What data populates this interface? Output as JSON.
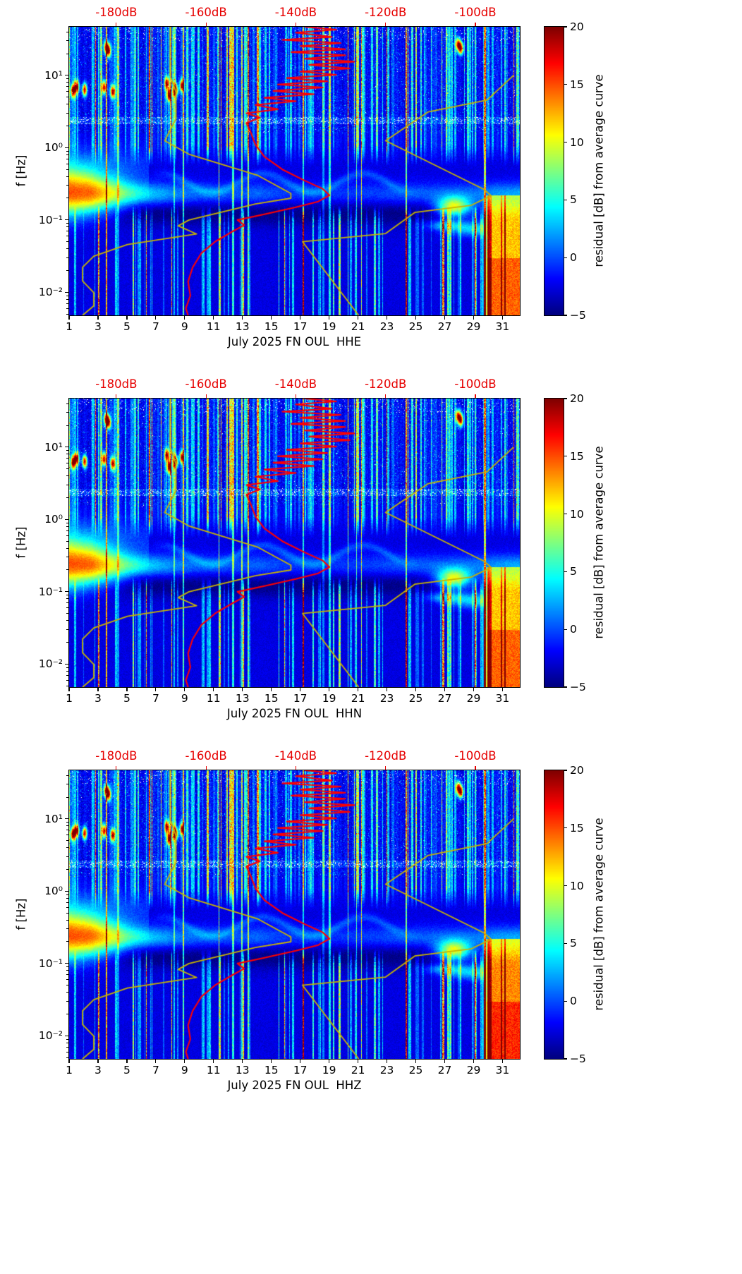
{
  "figure": {
    "background": "#ffffff"
  },
  "shared": {
    "ylabel": "f [Hz]",
    "top_db_labels": [
      "-180dB",
      "-160dB",
      "-140dB",
      "-120dB",
      "-100dB"
    ],
    "top_db_values": [
      -180,
      -160,
      -140,
      -120,
      -100
    ],
    "top_axis_color": "#e60000",
    "x_tick_labels": [
      "1",
      "3",
      "5",
      "7",
      "9",
      "11",
      "13",
      "15",
      "17",
      "19",
      "21",
      "23",
      "25",
      "27",
      "29",
      "31"
    ],
    "x_tick_values": [
      1,
      3,
      5,
      7,
      9,
      11,
      13,
      15,
      17,
      19,
      21,
      23,
      25,
      27,
      29,
      31
    ],
    "y_tick_labels": [
      "10¹",
      "10⁰",
      "10⁻¹",
      "10⁻²"
    ],
    "y_tick_values": [
      10,
      1,
      0.1,
      0.01
    ],
    "colorbar": {
      "label": "residual [dB] from average curve",
      "ticks": [
        "20",
        "15",
        "10",
        "5",
        "0",
        "−5"
      ],
      "tick_values": [
        20,
        15,
        10,
        5,
        0,
        -5
      ],
      "min": -5,
      "max": 20,
      "colormap": "jet"
    }
  },
  "panels": [
    {
      "channel": "HHE",
      "xlabel": "July 2025 FN OUL  HHE"
    },
    {
      "channel": "HHN",
      "xlabel": "July 2025 FN OUL  HHN"
    },
    {
      "channel": "HHZ",
      "xlabel": "July 2025 FN OUL  HHZ"
    }
  ],
  "chart_data": [
    {
      "type": "heatmap",
      "title": "",
      "xlabel": "July 2025 FN OUL  HHE",
      "ylabel": "f [Hz]",
      "x_axis": {
        "quantity": "day of July 2025",
        "range": [
          1,
          32.2
        ],
        "ticks": [
          1,
          3,
          5,
          7,
          9,
          11,
          13,
          15,
          17,
          19,
          21,
          23,
          25,
          27,
          29,
          31
        ]
      },
      "y_axis": {
        "quantity": "frequency [Hz]",
        "scale": "log",
        "range": [
          0.0048,
          47
        ],
        "ticks": [
          0.01,
          0.1,
          1,
          10
        ]
      },
      "top_axis": {
        "quantity": "PSD [dB]",
        "range": [
          -190.5,
          -90.1
        ],
        "ticks": [
          -180,
          -160,
          -140,
          -120,
          -100
        ],
        "tick_labels": [
          "-180dB",
          "-160dB",
          "-140dB",
          "-120dB",
          "-100dB"
        ],
        "color": "#e60000"
      },
      "color_axis": {
        "label": "residual [dB] from average curve",
        "range": [
          -5,
          20
        ],
        "ticks": [
          20,
          15,
          10,
          5,
          0,
          -5
        ],
        "colormap": "jet"
      },
      "overlays": {
        "average_curve": {
          "color": "#ff0000",
          "axis": "top_db",
          "points_db_hz": [
            [
              -138,
              47
            ],
            [
              -131,
              43
            ],
            [
              -140,
              39
            ],
            [
              -132,
              34
            ],
            [
              -143,
              31
            ],
            [
              -130,
              28
            ],
            [
              -139,
              25.5
            ],
            [
              -129,
              23
            ],
            [
              -141,
              21
            ],
            [
              -129,
              19
            ],
            [
              -138,
              17
            ],
            [
              -127,
              15.5
            ],
            [
              -137,
              14
            ],
            [
              -128,
              12.5
            ],
            [
              -139,
              11.3
            ],
            [
              -131,
              10.2
            ],
            [
              -142,
              9.2
            ],
            [
              -133,
              8.3
            ],
            [
              -144,
              7.5
            ],
            [
              -134,
              6.8
            ],
            [
              -145,
              6.1
            ],
            [
              -136,
              5.5
            ],
            [
              -147,
              4.9
            ],
            [
              -140,
              4.4
            ],
            [
              -149,
              3.9
            ],
            [
              -144,
              3.4
            ],
            [
              -151,
              3.0
            ],
            [
              -148,
              2.6
            ],
            [
              -151,
              2.2
            ],
            [
              -150,
              1.6
            ],
            [
              -149,
              1.1
            ],
            [
              -147,
              0.75
            ],
            [
              -143,
              0.5
            ],
            [
              -138,
              0.35
            ],
            [
              -134,
              0.27
            ],
            [
              -132.5,
              0.22
            ],
            [
              -135,
              0.18
            ],
            [
              -140,
              0.15
            ],
            [
              -147,
              0.12
            ],
            [
              -153,
              0.1
            ],
            [
              -151.5,
              0.085
            ],
            [
              -154,
              0.07
            ],
            [
              -158,
              0.05
            ],
            [
              -161,
              0.035
            ],
            [
              -163,
              0.022
            ],
            [
              -164,
              0.014
            ],
            [
              -163.5,
              0.009
            ],
            [
              -164.5,
              0.006
            ],
            [
              -164,
              0.0048
            ]
          ]
        },
        "low_noise_model": {
          "color": "#c8b400",
          "axis": "top_db",
          "points_db_hz": [
            [
              -168,
              47
            ],
            [
              -168,
              10
            ],
            [
              -166.7,
              5.9
            ],
            [
              -166.7,
              2.5
            ],
            [
              -169.2,
              1.25
            ],
            [
              -163.7,
              0.806
            ],
            [
              -148.6,
              0.417
            ],
            [
              -141.1,
              0.233
            ],
            [
              -141.1,
              0.2
            ],
            [
              -149.0,
              0.167
            ],
            [
              -163.8,
              0.1
            ],
            [
              -166.2,
              0.083
            ],
            [
              -162.1,
              0.064
            ],
            [
              -177.5,
              0.0457
            ],
            [
              -185.0,
              0.0316
            ],
            [
              -187.5,
              0.0222
            ],
            [
              -187.5,
              0.0143
            ],
            [
              -185.0,
              0.0099
            ],
            [
              -185.0,
              0.0065
            ],
            [
              -187.5,
              0.0048
            ]
          ]
        },
        "high_noise_model": {
          "color": "#c8b400",
          "axis": "top_db",
          "points_db_hz": [
            [
              -91.5,
              10
            ],
            [
              -97.4,
              4.55
            ],
            [
              -110.5,
              3.13
            ],
            [
              -120.0,
              1.25
            ],
            [
              -98.0,
              0.263
            ],
            [
              -96.5,
              0.217
            ],
            [
              -101.0,
              0.159
            ],
            [
              -113.5,
              0.127
            ],
            [
              -120.0,
              0.065
            ],
            [
              -138.5,
              0.05
            ],
            [
              -126.0,
              0.0048
            ]
          ]
        }
      },
      "features": {
        "background_residual_db": -2.6,
        "microseism_band": {
          "center_freq_hz": 0.23,
          "amplitude_by_day": [
            [
              1,
              16.5
            ],
            [
              2.5,
              16
            ],
            [
              4,
              12
            ],
            [
              5,
              9
            ],
            [
              6,
              7
            ],
            [
              7,
              5.5
            ],
            [
              8,
              4.5
            ],
            [
              10,
              3.2
            ],
            [
              12,
              2.8
            ],
            [
              14,
              3.4
            ],
            [
              16,
              2.2
            ],
            [
              19,
              2.0
            ],
            [
              22,
              2.4
            ],
            [
              25,
              3.0
            ],
            [
              27,
              3.2
            ],
            [
              29,
              3.5
            ],
            [
              30.5,
              4.5
            ],
            [
              32,
              5
            ]
          ]
        },
        "blobs": [
          {
            "day": 27.6,
            "sd": 0.8,
            "f": 0.155,
            "sf": 0.09,
            "amp": 12
          },
          {
            "day": 29.3,
            "sd": 1.4,
            "f": 0.075,
            "sf": 0.07,
            "amp": 6
          },
          {
            "day": 27.0,
            "sd": 1.0,
            "f": 0.085,
            "sf": 0.05,
            "amp": 5
          },
          {
            "day": 31.2,
            "sd": 0.8,
            "f": 0.1,
            "sf": 0.06,
            "amp": 5
          }
        ],
        "hot_spots": [
          {
            "day": 1.25,
            "f": 6.2
          },
          {
            "day": 1.5,
            "f": 7.0
          },
          {
            "day": 2.05,
            "f": 6.4
          },
          {
            "day": 3.4,
            "f": 6.9
          },
          {
            "day": 3.55,
            "f": 25
          },
          {
            "day": 3.7,
            "f": 22
          },
          {
            "day": 4.0,
            "f": 6.0
          },
          {
            "day": 7.75,
            "f": 7.8
          },
          {
            "day": 7.9,
            "f": 5.4
          },
          {
            "day": 8.35,
            "f": 6.3
          },
          {
            "day": 8.8,
            "f": 7.3
          },
          {
            "day": 27.9,
            "f": 27
          },
          {
            "day": 28.1,
            "f": 24
          }
        ],
        "quiet_notch": {
          "freq_hz": [
            0.09,
            0.17
          ],
          "days": [
            4,
            27
          ],
          "residual_db": -4
        },
        "low_right_block": {
          "days": [
            29.6,
            32
          ],
          "freq_hz_max": 0.2,
          "residual_db": [
            12,
            20
          ]
        },
        "vertical_stripes": "noisy days appear as vertical cyan-to-red stripes above 1 Hz and below 0.1 Hz",
        "strong_full_height_stripe_day": 29.75
      }
    },
    {
      "type": "heatmap",
      "xlabel": "July 2025 FN OUL  HHN",
      "note": "axes, colorbar, overlay curves and heatmap features identical to chart_data[0]"
    },
    {
      "type": "heatmap",
      "xlabel": "July 2025 FN OUL  HHZ",
      "note": "axes, colorbar, overlay curves and heatmap features identical to chart_data[0]; low-frequency block at days 29.6-32 slightly stronger"
    }
  ]
}
